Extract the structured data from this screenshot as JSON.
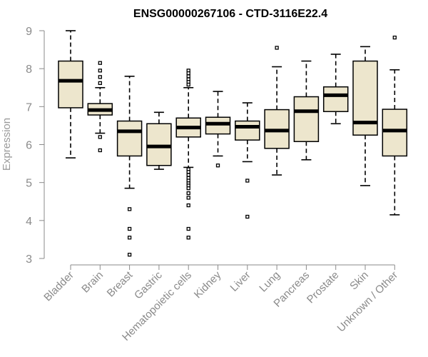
{
  "chart_data": {
    "type": "boxplot",
    "title": "ENSG00000267106 - CTD-3116E22.4",
    "xlabel": "",
    "ylabel": "Expression",
    "ylim": [
      3,
      9
    ],
    "yticks": [
      3,
      4,
      5,
      6,
      7,
      8,
      9
    ],
    "colors": {
      "box_fill": "#ede6cd",
      "box_stroke": "#000000",
      "axis": "#8a8a8a"
    },
    "categories": [
      "Bladder",
      "Brain",
      "Breast",
      "Gastric",
      "Hematopoietic cells",
      "Kidney",
      "Liver",
      "Lung",
      "Pancreas",
      "Prostate",
      "Skin",
      "Unknown / Other"
    ],
    "boxes": [
      {
        "name": "Bladder",
        "whislo": 5.65,
        "q1": 6.97,
        "med": 7.68,
        "q3": 8.2,
        "whishi": 9.0,
        "fliers": []
      },
      {
        "name": "Brain",
        "whislo": 6.3,
        "q1": 6.78,
        "med": 6.91,
        "q3": 7.08,
        "whishi": 7.5,
        "fliers": [
          8.15,
          7.95,
          7.78,
          7.62,
          6.2,
          5.85
        ]
      },
      {
        "name": "Breast",
        "whislo": 4.85,
        "q1": 5.7,
        "med": 6.35,
        "q3": 6.62,
        "whishi": 7.8,
        "fliers": [
          4.3,
          3.78,
          3.55,
          3.1
        ]
      },
      {
        "name": "Gastric",
        "whislo": 5.35,
        "q1": 5.45,
        "med": 5.95,
        "q3": 6.55,
        "whishi": 6.85,
        "fliers": []
      },
      {
        "name": "Hematopoietic cells",
        "whislo": 5.4,
        "q1": 6.2,
        "med": 6.45,
        "q3": 6.7,
        "whishi": 7.5,
        "fliers": [
          7.95,
          7.88,
          7.8,
          7.72,
          7.65,
          7.58,
          5.35,
          5.28,
          5.2,
          5.12,
          5.05,
          4.98,
          4.92,
          4.85,
          4.72,
          4.6,
          4.4,
          3.78,
          3.55
        ]
      },
      {
        "name": "Kidney",
        "whislo": 5.7,
        "q1": 6.28,
        "med": 6.55,
        "q3": 6.72,
        "whishi": 7.4,
        "fliers": [
          5.45
        ]
      },
      {
        "name": "Liver",
        "whislo": 5.55,
        "q1": 6.12,
        "med": 6.47,
        "q3": 6.62,
        "whishi": 7.1,
        "fliers": [
          5.05,
          4.1
        ]
      },
      {
        "name": "Lung",
        "whislo": 5.2,
        "q1": 5.9,
        "med": 6.37,
        "q3": 6.92,
        "whishi": 8.05,
        "fliers": [
          8.55
        ]
      },
      {
        "name": "Pancreas",
        "whislo": 5.6,
        "q1": 6.08,
        "med": 6.88,
        "q3": 7.26,
        "whishi": 8.2,
        "fliers": []
      },
      {
        "name": "Prostate",
        "whislo": 6.55,
        "q1": 6.87,
        "med": 7.3,
        "q3": 7.52,
        "whishi": 8.38,
        "fliers": []
      },
      {
        "name": "Skin",
        "whislo": 4.92,
        "q1": 6.25,
        "med": 6.58,
        "q3": 8.2,
        "whishi": 8.58,
        "fliers": []
      },
      {
        "name": "Unknown / Other",
        "whislo": 4.15,
        "q1": 5.7,
        "med": 6.37,
        "q3": 6.93,
        "whishi": 7.97,
        "fliers": [
          8.82
        ]
      }
    ]
  }
}
